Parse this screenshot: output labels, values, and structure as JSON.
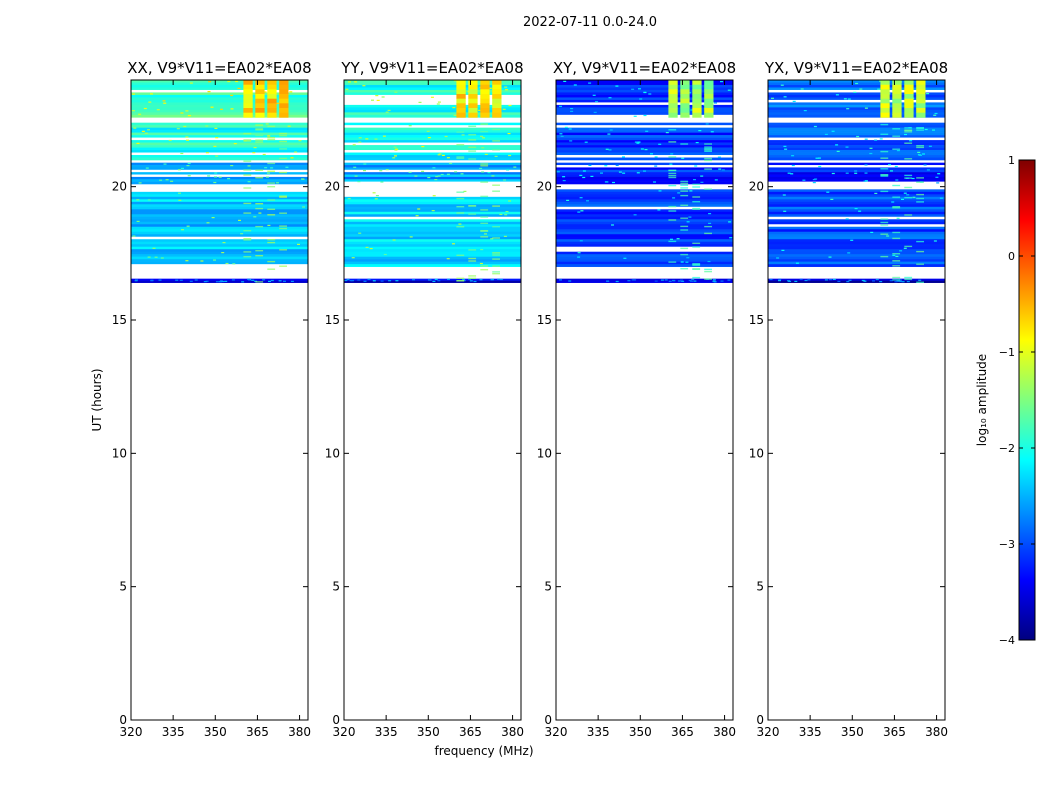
{
  "chart_data": {
    "type": "heatmap",
    "title": "2022-07-11 0.0-24.0",
    "xlabel": "frequency (MHz)",
    "ylabel": "UT (hours)",
    "xlim": [
      320,
      383
    ],
    "ylim": [
      0,
      24
    ],
    "x_ticks": [
      320,
      335,
      350,
      365,
      380
    ],
    "y_ticks": [
      0,
      5,
      10,
      15,
      20
    ],
    "panels": [
      {
        "title": "XX, V9*V11=EA02*EA08",
        "base_level": -2.0,
        "bands": [
          {
            "t0": 16.4,
            "t1": 16.55,
            "level": -3.5
          },
          {
            "t0": 17.0,
            "t1": 19.9,
            "level": -2.4
          },
          {
            "t0": 20.1,
            "t1": 20.9,
            "level": -2.6
          },
          {
            "t0": 21.0,
            "t1": 22.4,
            "level": -2.0
          },
          {
            "t0": 22.6,
            "t1": 24.0,
            "level": -1.8
          }
        ],
        "rfi_block": {
          "f0": 360,
          "f1": 377,
          "t0": 22.6,
          "t1": 24.0,
          "level": -0.7
        },
        "rfi_faint": {
          "f0": 360,
          "f1": 377,
          "t0": 16.4,
          "t1": 22.4,
          "level": -1.6
        }
      },
      {
        "title": "YY, V9*V11=EA02*EA08",
        "base_level": -2.0,
        "bands": [
          {
            "t0": 16.4,
            "t1": 16.55,
            "level": -3.5
          },
          {
            "t0": 17.0,
            "t1": 19.9,
            "level": -2.3
          },
          {
            "t0": 20.1,
            "t1": 20.9,
            "level": -2.6
          },
          {
            "t0": 21.0,
            "t1": 22.4,
            "level": -2.1
          },
          {
            "t0": 22.6,
            "t1": 24.0,
            "level": -2.0
          }
        ],
        "rfi_block": {
          "f0": 360,
          "f1": 377,
          "t0": 22.6,
          "t1": 24.0,
          "level": -0.8
        },
        "rfi_faint": {
          "f0": 360,
          "f1": 377,
          "t0": 16.4,
          "t1": 22.4,
          "level": -1.7
        }
      },
      {
        "title": "XY, V9*V11=EA02*EA08",
        "base_level": -3.3,
        "bands": [
          {
            "t0": 16.4,
            "t1": 16.55,
            "level": -3.6
          },
          {
            "t0": 17.0,
            "t1": 19.9,
            "level": -3.1
          },
          {
            "t0": 20.1,
            "t1": 20.9,
            "level": -3.2
          },
          {
            "t0": 21.0,
            "t1": 22.4,
            "level": -3.1
          },
          {
            "t0": 22.6,
            "t1": 24.0,
            "level": -3.2
          }
        ],
        "rfi_block": {
          "f0": 360,
          "f1": 377,
          "t0": 22.6,
          "t1": 24.0,
          "level": -1.3
        },
        "rfi_faint": {
          "f0": 360,
          "f1": 377,
          "t0": 16.4,
          "t1": 22.4,
          "level": -2.0
        }
      },
      {
        "title": "YX, V9*V11=EA02*EA08",
        "base_level": -3.2,
        "bands": [
          {
            "t0": 16.4,
            "t1": 16.55,
            "level": -3.6
          },
          {
            "t0": 17.0,
            "t1": 19.9,
            "level": -3.0
          },
          {
            "t0": 20.1,
            "t1": 20.9,
            "level": -3.2
          },
          {
            "t0": 21.0,
            "t1": 22.4,
            "level": -3.0
          },
          {
            "t0": 22.6,
            "t1": 24.0,
            "level": -2.9
          }
        ],
        "rfi_block": {
          "f0": 360,
          "f1": 377,
          "t0": 22.6,
          "t1": 24.0,
          "level": -1.2
        },
        "rfi_faint": {
          "f0": 360,
          "f1": 377,
          "t0": 16.4,
          "t1": 22.4,
          "level": -2.0
        }
      }
    ],
    "colorbar": {
      "label": "log₁₀ amplitude",
      "colormap": "jet",
      "range": [
        -4,
        1
      ],
      "ticks": [
        1,
        0,
        -1,
        -2,
        -3,
        -4
      ],
      "tick_labels": [
        "1",
        "0",
        "−1",
        "−2",
        "−3",
        "−4"
      ]
    },
    "colormap_stops": [
      "#00007f",
      "#0000ff",
      "#007fff",
      "#00ffff",
      "#7fff7f",
      "#ffff00",
      "#ff7f00",
      "#ff0000",
      "#7f0000"
    ]
  }
}
